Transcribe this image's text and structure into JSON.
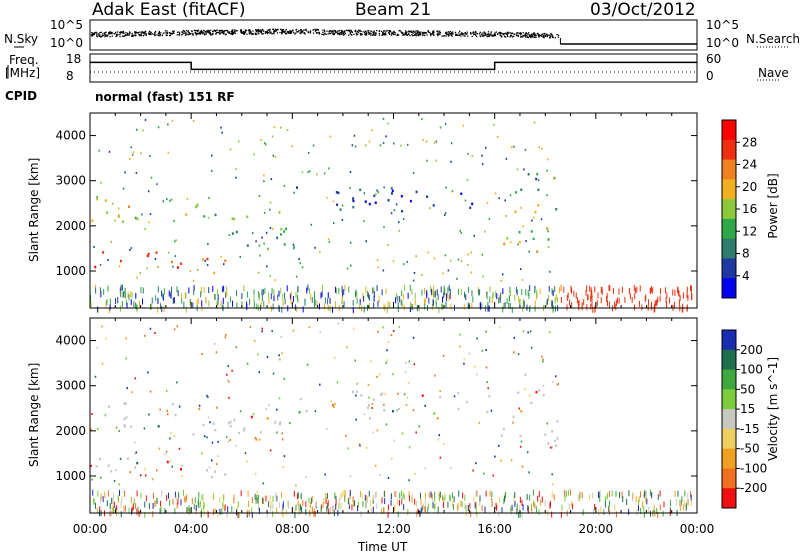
{
  "header": {
    "site": "Adak East (fitACF)",
    "beam": "Beam 21",
    "date": "03/Oct/2012"
  },
  "panels": {
    "nsky_label": "N.Sky",
    "nsearch_label": "N.Search",
    "freq_label_1": "Freq.",
    "freq_label_2": "[MHz]",
    "nave_label": "Nave",
    "cpid_label": "CPID",
    "cpid_text": "normal (fast) 151 RF",
    "nsky_ticks": [
      "10^5",
      "10^0"
    ],
    "nsearch_ticks": [
      "10^5",
      "10^0"
    ],
    "freq_ticks": [
      "18",
      "8"
    ],
    "nave_ticks": [
      "60",
      "0"
    ]
  },
  "chart_data": {
    "type": "heatmap",
    "xlabel": "Time UT",
    "x_ticks": [
      "00:00",
      "04:00",
      "08:00",
      "12:00",
      "16:00",
      "20:00",
      "00:00"
    ],
    "xlim": [
      0,
      24
    ],
    "ylabel": "Slant Range [km]",
    "ylim": [
      180,
      4500
    ],
    "y_ticks": [
      1000,
      2000,
      3000,
      4000
    ],
    "panels": [
      {
        "name": "power",
        "colorbar_label": "Power [dB]",
        "colorbar_ticks": [
          28,
          24,
          20,
          16,
          12,
          8,
          4
        ],
        "colorbar_range": [
          0,
          32
        ],
        "colors": [
          "#0000ee",
          "#1e3aa0",
          "#2e7d6a",
          "#2fa84a",
          "#8cc83c",
          "#f0b020",
          "#f08020",
          "#ee3010",
          "#ff0000"
        ],
        "echo_bands": [
          {
            "t": [
              0.0,
              3.8
            ],
            "r": [
              1050,
              1500
            ],
            "p": [
              24,
              30
            ]
          },
          {
            "t": [
              0.0,
              3.8
            ],
            "r": [
              2100,
              2650
            ],
            "p": [
              14,
              22
            ]
          },
          {
            "t": [
              4.0,
              5.5
            ],
            "r": [
              950,
              1400
            ],
            "p": [
              18,
              26
            ]
          },
          {
            "t": [
              4.0,
              5.8
            ],
            "r": [
              1900,
              2600
            ],
            "p": [
              10,
              18
            ]
          },
          {
            "t": [
              5.5,
              8.0
            ],
            "r": [
              1500,
              2400
            ],
            "p": [
              8,
              16
            ]
          },
          {
            "t": [
              8.0,
              16.0
            ],
            "r": [
              2300,
              2900
            ],
            "p": [
              2,
              8
            ]
          },
          {
            "t": [
              16.2,
              18.5
            ],
            "r": [
              1450,
              2500
            ],
            "p": [
              6,
              24
            ]
          },
          {
            "t": [
              16.8,
              18.5
            ],
            "r": [
              2600,
              3300
            ],
            "p": [
              6,
              14
            ]
          }
        ]
      },
      {
        "name": "velocity",
        "colorbar_label": "Velocity [m s^-1]",
        "colorbar_ticks": [
          200,
          100,
          50,
          15,
          -15,
          -50,
          -100,
          -200
        ],
        "colors": [
          "#1a2cb0",
          "#1e6e4e",
          "#3ea83e",
          "#7ccc3c",
          "#c8c8c0",
          "#f0d060",
          "#f0a020",
          "#f07020",
          "#ee1010"
        ]
      }
    ],
    "top_series": [
      {
        "name": "N.Sky",
        "scale": "log",
        "range": [
          1,
          100000
        ]
      },
      {
        "name": "N.Search",
        "scale": "log",
        "range": [
          1,
          100000
        ]
      },
      {
        "name": "Freq.",
        "unit": "MHz",
        "range": [
          8,
          18
        ],
        "segments": [
          {
            "t": [
              0,
              4
            ],
            "v": 15
          },
          {
            "t": [
              4,
              16
            ],
            "v": 12.5
          },
          {
            "t": [
              16,
              24
            ],
            "v": 15
          }
        ]
      },
      {
        "name": "Nave",
        "range": [
          0,
          60
        ]
      }
    ]
  }
}
